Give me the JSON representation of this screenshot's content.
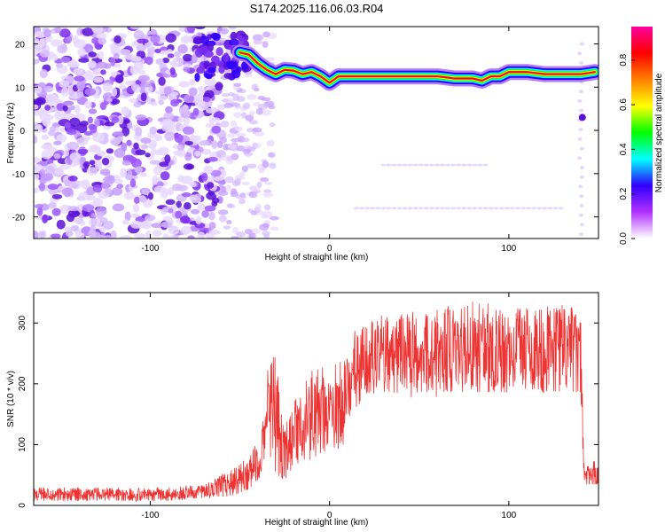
{
  "title": "S174.2025.116.06.03.R04",
  "chart_data": [
    {
      "type": "heatmap",
      "xlabel": "Height of straight line (km)",
      "ylabel": "Frequency (Hz)",
      "xlim": [
        -165,
        150
      ],
      "ylim": [
        -25,
        24
      ],
      "xticks": [
        -100,
        0,
        100
      ],
      "yticks": [
        -20,
        -10,
        0,
        10,
        20
      ],
      "colorbar": {
        "label": "Normalized spectral amplitude",
        "range": [
          0,
          0.95
        ],
        "ticks": [
          0.0,
          0.2,
          0.4,
          0.6,
          0.8
        ],
        "stops": [
          "#ffffff",
          "#b030ff",
          "#3000ff",
          "#00ffff",
          "#00ff00",
          "#ffff00",
          "#ff8000",
          "#ff0000",
          "#ff00a0"
        ]
      },
      "ridge": {
        "x": [
          -50,
          -45,
          -40,
          -35,
          -30,
          -25,
          -20,
          -15,
          -10,
          -5,
          0,
          5,
          10,
          20,
          30,
          40,
          50,
          60,
          70,
          80,
          85,
          90,
          95,
          100,
          110,
          120,
          130,
          140,
          148
        ],
        "y": [
          18,
          17.5,
          15.5,
          14,
          13,
          14,
          13.8,
          13,
          13.5,
          12.5,
          11,
          12.5,
          12.5,
          12.5,
          12.5,
          12.5,
          12.5,
          12.5,
          12,
          12,
          11.5,
          12.5,
          12.5,
          13.5,
          13.5,
          13,
          13,
          13,
          13.5
        ]
      }
    },
    {
      "type": "line",
      "xlabel": "Height of straight line (km)",
      "ylabel": "SNR (10 * v/v)",
      "xlim": [
        -165,
        150
      ],
      "ylim": [
        0,
        350
      ],
      "xticks": [
        -100,
        0,
        100
      ],
      "yticks": [
        0,
        100,
        200,
        300
      ],
      "color": "#ee3333",
      "envelope": {
        "x": [
          -165,
          -90,
          -70,
          -55,
          -45,
          -38,
          -34,
          -30,
          -25,
          -20,
          -10,
          0,
          8,
          15,
          18,
          25,
          40,
          60,
          80,
          100,
          120,
          140,
          142,
          144,
          150
        ],
        "lo": [
          5,
          5,
          10,
          10,
          20,
          40,
          70,
          30,
          30,
          40,
          60,
          70,
          80,
          130,
          170,
          170,
          170,
          170,
          170,
          170,
          170,
          170,
          30,
          30,
          30
        ],
        "hi": [
          30,
          30,
          35,
          60,
          80,
          120,
          240,
          250,
          130,
          170,
          230,
          240,
          250,
          300,
          300,
          310,
          320,
          330,
          335,
          330,
          330,
          335,
          60,
          70,
          75
        ]
      }
    }
  ]
}
